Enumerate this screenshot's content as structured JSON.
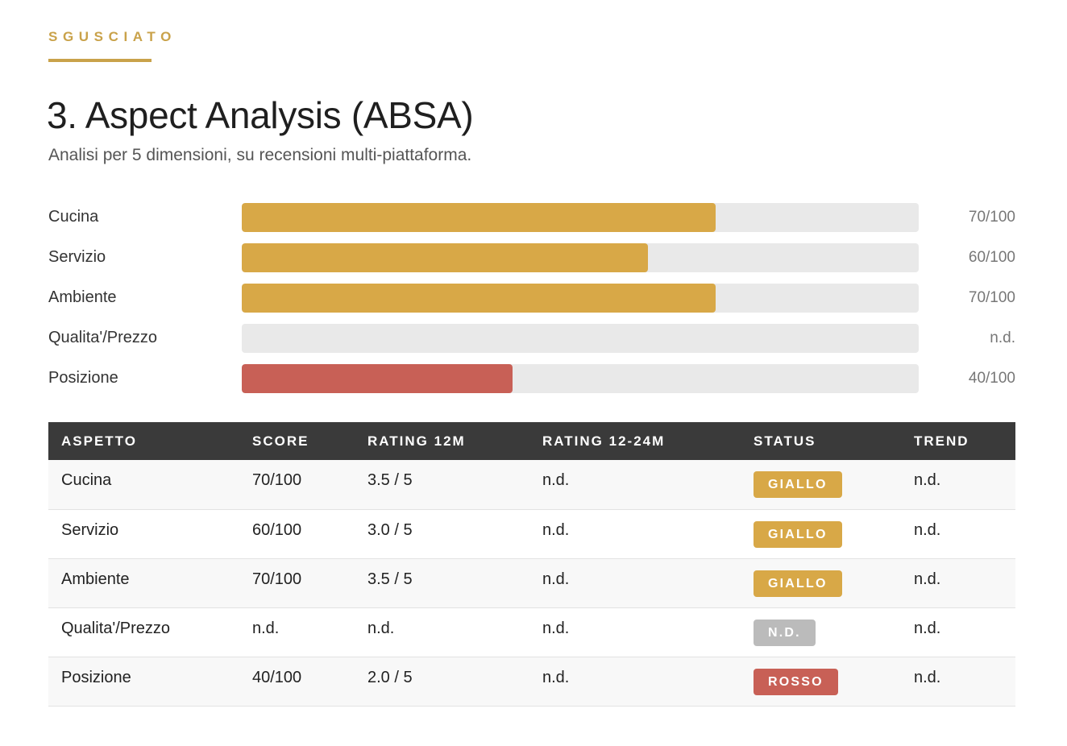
{
  "header": {
    "brand": "SGUSCIATO",
    "title": "3. Aspect Analysis (ABSA)",
    "subtitle": "Analisi per 5 dimensioni, su recensioni multi-piattaforma."
  },
  "colors": {
    "accent": "#c9a24a",
    "giallo": "#d8a847",
    "rosso": "#c86056",
    "nd": "#bbbbbb",
    "track": "#e9e9e9",
    "table_header": "#3a3a3a"
  },
  "bars": [
    {
      "label": "Cucina",
      "value_text": "70/100",
      "fraction": 0.7,
      "status": "giallo"
    },
    {
      "label": "Servizio",
      "value_text": "60/100",
      "fraction": 0.6,
      "status": "giallo"
    },
    {
      "label": "Ambiente",
      "value_text": "70/100",
      "fraction": 0.7,
      "status": "giallo"
    },
    {
      "label": "Qualita'/Prezzo",
      "value_text": "n.d.",
      "fraction": 0,
      "status": "nd"
    },
    {
      "label": "Posizione",
      "value_text": "40/100",
      "fraction": 0.4,
      "status": "rosso"
    }
  ],
  "table": {
    "headers": [
      "ASPETTO",
      "SCORE",
      "RATING 12M",
      "RATING 12-24M",
      "STATUS",
      "TREND"
    ],
    "rows": [
      {
        "aspetto": "Cucina",
        "score": "70/100",
        "rating_12m": "3.5 / 5",
        "rating_12_24m": "n.d.",
        "status": "GIALLO",
        "status_key": "giallo",
        "trend": "n.d."
      },
      {
        "aspetto": "Servizio",
        "score": "60/100",
        "rating_12m": "3.0 / 5",
        "rating_12_24m": "n.d.",
        "status": "GIALLO",
        "status_key": "giallo",
        "trend": "n.d."
      },
      {
        "aspetto": "Ambiente",
        "score": "70/100",
        "rating_12m": "3.5 / 5",
        "rating_12_24m": "n.d.",
        "status": "GIALLO",
        "status_key": "giallo",
        "trend": "n.d."
      },
      {
        "aspetto": "Qualita'/Prezzo",
        "score": "n.d.",
        "rating_12m": "n.d.",
        "rating_12_24m": "n.d.",
        "status": "N.D.",
        "status_key": "nd",
        "trend": "n.d."
      },
      {
        "aspetto": "Posizione",
        "score": "40/100",
        "rating_12m": "2.0 / 5",
        "rating_12_24m": "n.d.",
        "status": "ROSSO",
        "status_key": "rosso",
        "trend": "n.d."
      }
    ]
  }
}
